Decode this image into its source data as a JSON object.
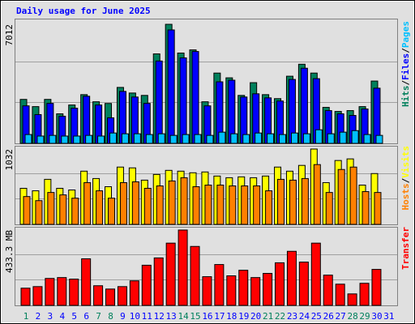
{
  "chart_data": [
    {
      "type": "bar",
      "title": "Daily usage for June 2025",
      "ylim": [
        0,
        7012
      ],
      "yticks": [
        7012
      ],
      "legend_separator": "/",
      "legend_order": [
        0,
        1,
        2
      ],
      "series": [
        {
          "name": "Hits",
          "color": "#00805c",
          "values": [
            2590,
            2165,
            2590,
            1740,
            2260,
            2870,
            2450,
            2350,
            3295,
            2965,
            2825,
            5270,
            7012,
            5320,
            5505,
            2450,
            4140,
            3860,
            2825,
            3575,
            2870,
            2635,
            3955,
            4660,
            4140,
            2120,
            1880,
            1930,
            2165,
            3670,
            null
          ]
        },
        {
          "name": "Files",
          "color": "#0000ff",
          "values": [
            2210,
            1695,
            2355,
            1600,
            2070,
            2775,
            2260,
            1505,
            3060,
            2730,
            2355,
            4850,
            6680,
            5035,
            5410,
            2210,
            3625,
            3720,
            2730,
            2920,
            2680,
            2495,
            3765,
            4425,
            3810,
            1930,
            1740,
            1645,
            2025,
            3250,
            null
          ]
        },
        {
          "name": "Pages",
          "color": "#00c0ff",
          "values": [
            520,
            430,
            470,
            430,
            430,
            470,
            430,
            610,
            565,
            565,
            520,
            565,
            470,
            520,
            520,
            470,
            660,
            565,
            520,
            610,
            565,
            520,
            610,
            565,
            800,
            565,
            660,
            750,
            520,
            470,
            null
          ]
        }
      ]
    },
    {
      "type": "bar",
      "ylim": [
        0,
        1032
      ],
      "yticks": [
        1032
      ],
      "legend_separator": "/",
      "legend_order": [
        1,
        0
      ],
      "series": [
        {
          "name": "Visits",
          "color": "#ffff00",
          "values": [
            494,
            460,
            617,
            494,
            471,
            729,
            628,
            516,
            785,
            774,
            606,
            684,
            740,
            729,
            707,
            718,
            662,
            639,
            651,
            639,
            662,
            785,
            729,
            808,
            1032,
            572,
            875,
            897,
            538,
            696,
            null
          ]
        },
        {
          "name": "Hosts",
          "color": "#ff8000",
          "values": [
            381,
            325,
            437,
            404,
            359,
            572,
            460,
            359,
            572,
            583,
            494,
            527,
            595,
            639,
            516,
            538,
            538,
            527,
            527,
            527,
            460,
            617,
            606,
            628,
            819,
            437,
            752,
            785,
            449,
            437,
            null
          ]
        }
      ]
    },
    {
      "type": "bar",
      "ylim": [
        0,
        433.3
      ],
      "yticks": [
        {
          "value": 433.3,
          "label": "433.3 MB"
        }
      ],
      "legend_order": [
        0
      ],
      "categories": [
        "1",
        "2",
        "3",
        "4",
        "5",
        "6",
        "7",
        "8",
        "9",
        "10",
        "11",
        "12",
        "13",
        "14",
        "15",
        "16",
        "17",
        "18",
        "19",
        "20",
        "21",
        "22",
        "23",
        "24",
        "25",
        "26",
        "27",
        "28",
        "29",
        "30",
        "31"
      ],
      "category_colors": [
        "#00805c",
        "#0000ff",
        "#0000ff",
        "#0000ff",
        "#0000ff",
        "#0000ff",
        "#00805c",
        "#00805c",
        "#0000ff",
        "#0000ff",
        "#0000ff",
        "#0000ff",
        "#0000ff",
        "#00805c",
        "#00805c",
        "#0000ff",
        "#0000ff",
        "#0000ff",
        "#0000ff",
        "#0000ff",
        "#00805c",
        "#00805c",
        "#0000ff",
        "#0000ff",
        "#0000ff",
        "#0000ff",
        "#0000ff",
        "#00805c",
        "#00805c",
        "#0000ff",
        "#0000ff"
      ],
      "series": [
        {
          "name": "Transfer",
          "color": "#ff0000",
          "values": [
            99,
            108,
            155,
            160,
            151,
            268,
            113,
            94,
            108,
            141,
            231,
            273,
            358,
            433.3,
            339,
            165,
            235,
            170,
            202,
            160,
            184,
            245,
            311,
            249,
            358,
            174,
            122,
            66,
            127,
            207,
            null
          ]
        }
      ]
    }
  ]
}
